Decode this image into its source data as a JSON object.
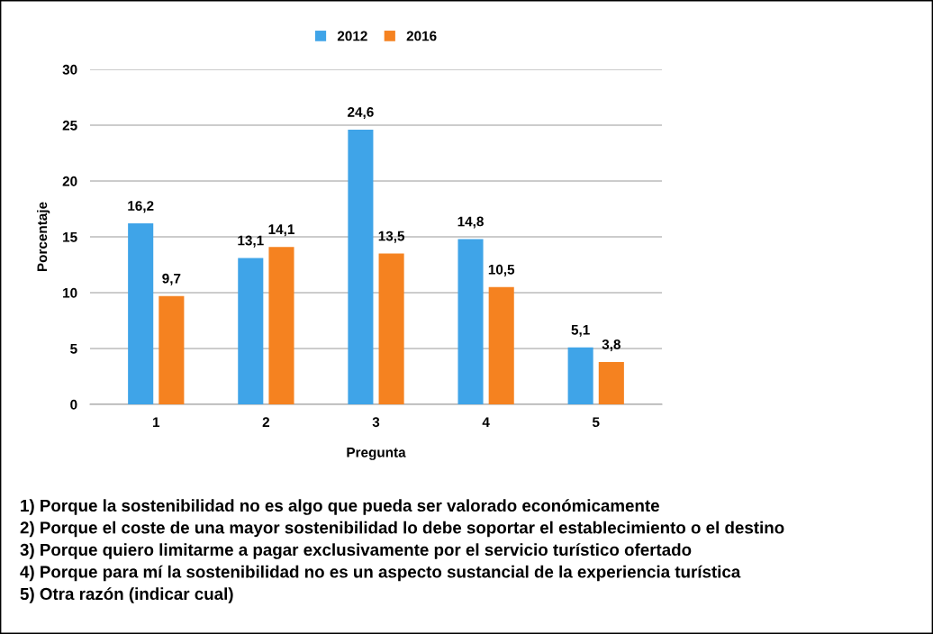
{
  "chart_data": {
    "type": "bar",
    "xlabel": "Pregunta",
    "ylabel": "Porcentaje",
    "categories": [
      "1",
      "2",
      "3",
      "4",
      "5"
    ],
    "series": [
      {
        "name": "2012",
        "color": "#3fa4e8",
        "values": [
          16.2,
          13.1,
          24.6,
          14.8,
          5.1
        ],
        "value_labels": [
          "16,2",
          "13,1",
          "24,6",
          "14,8",
          "5,1"
        ]
      },
      {
        "name": "2016",
        "color": "#f58220",
        "values": [
          9.7,
          14.1,
          13.5,
          10.5,
          3.8
        ],
        "value_labels": [
          "9,7",
          "14,1",
          "13,5",
          "10,5",
          "3,8"
        ]
      }
    ],
    "ylim": [
      0,
      30
    ],
    "yticks": [
      0,
      5,
      10,
      15,
      20,
      25,
      30
    ],
    "grid": "y",
    "legend": "top",
    "annotations": [
      "1) Porque la sostenibilidad no es algo que pueda ser valorado económicamente",
      "2) Porque el coste de una mayor sostenibilidad lo debe soportar el establecimiento o el destino",
      "3) Porque quiero limitarme a pagar exclusivamente por el servicio turístico ofertado",
      "4) Porque para mí la sostenibilidad no es un aspecto sustancial de la experiencia turística",
      "5) Otra razón (indicar cual)"
    ]
  }
}
